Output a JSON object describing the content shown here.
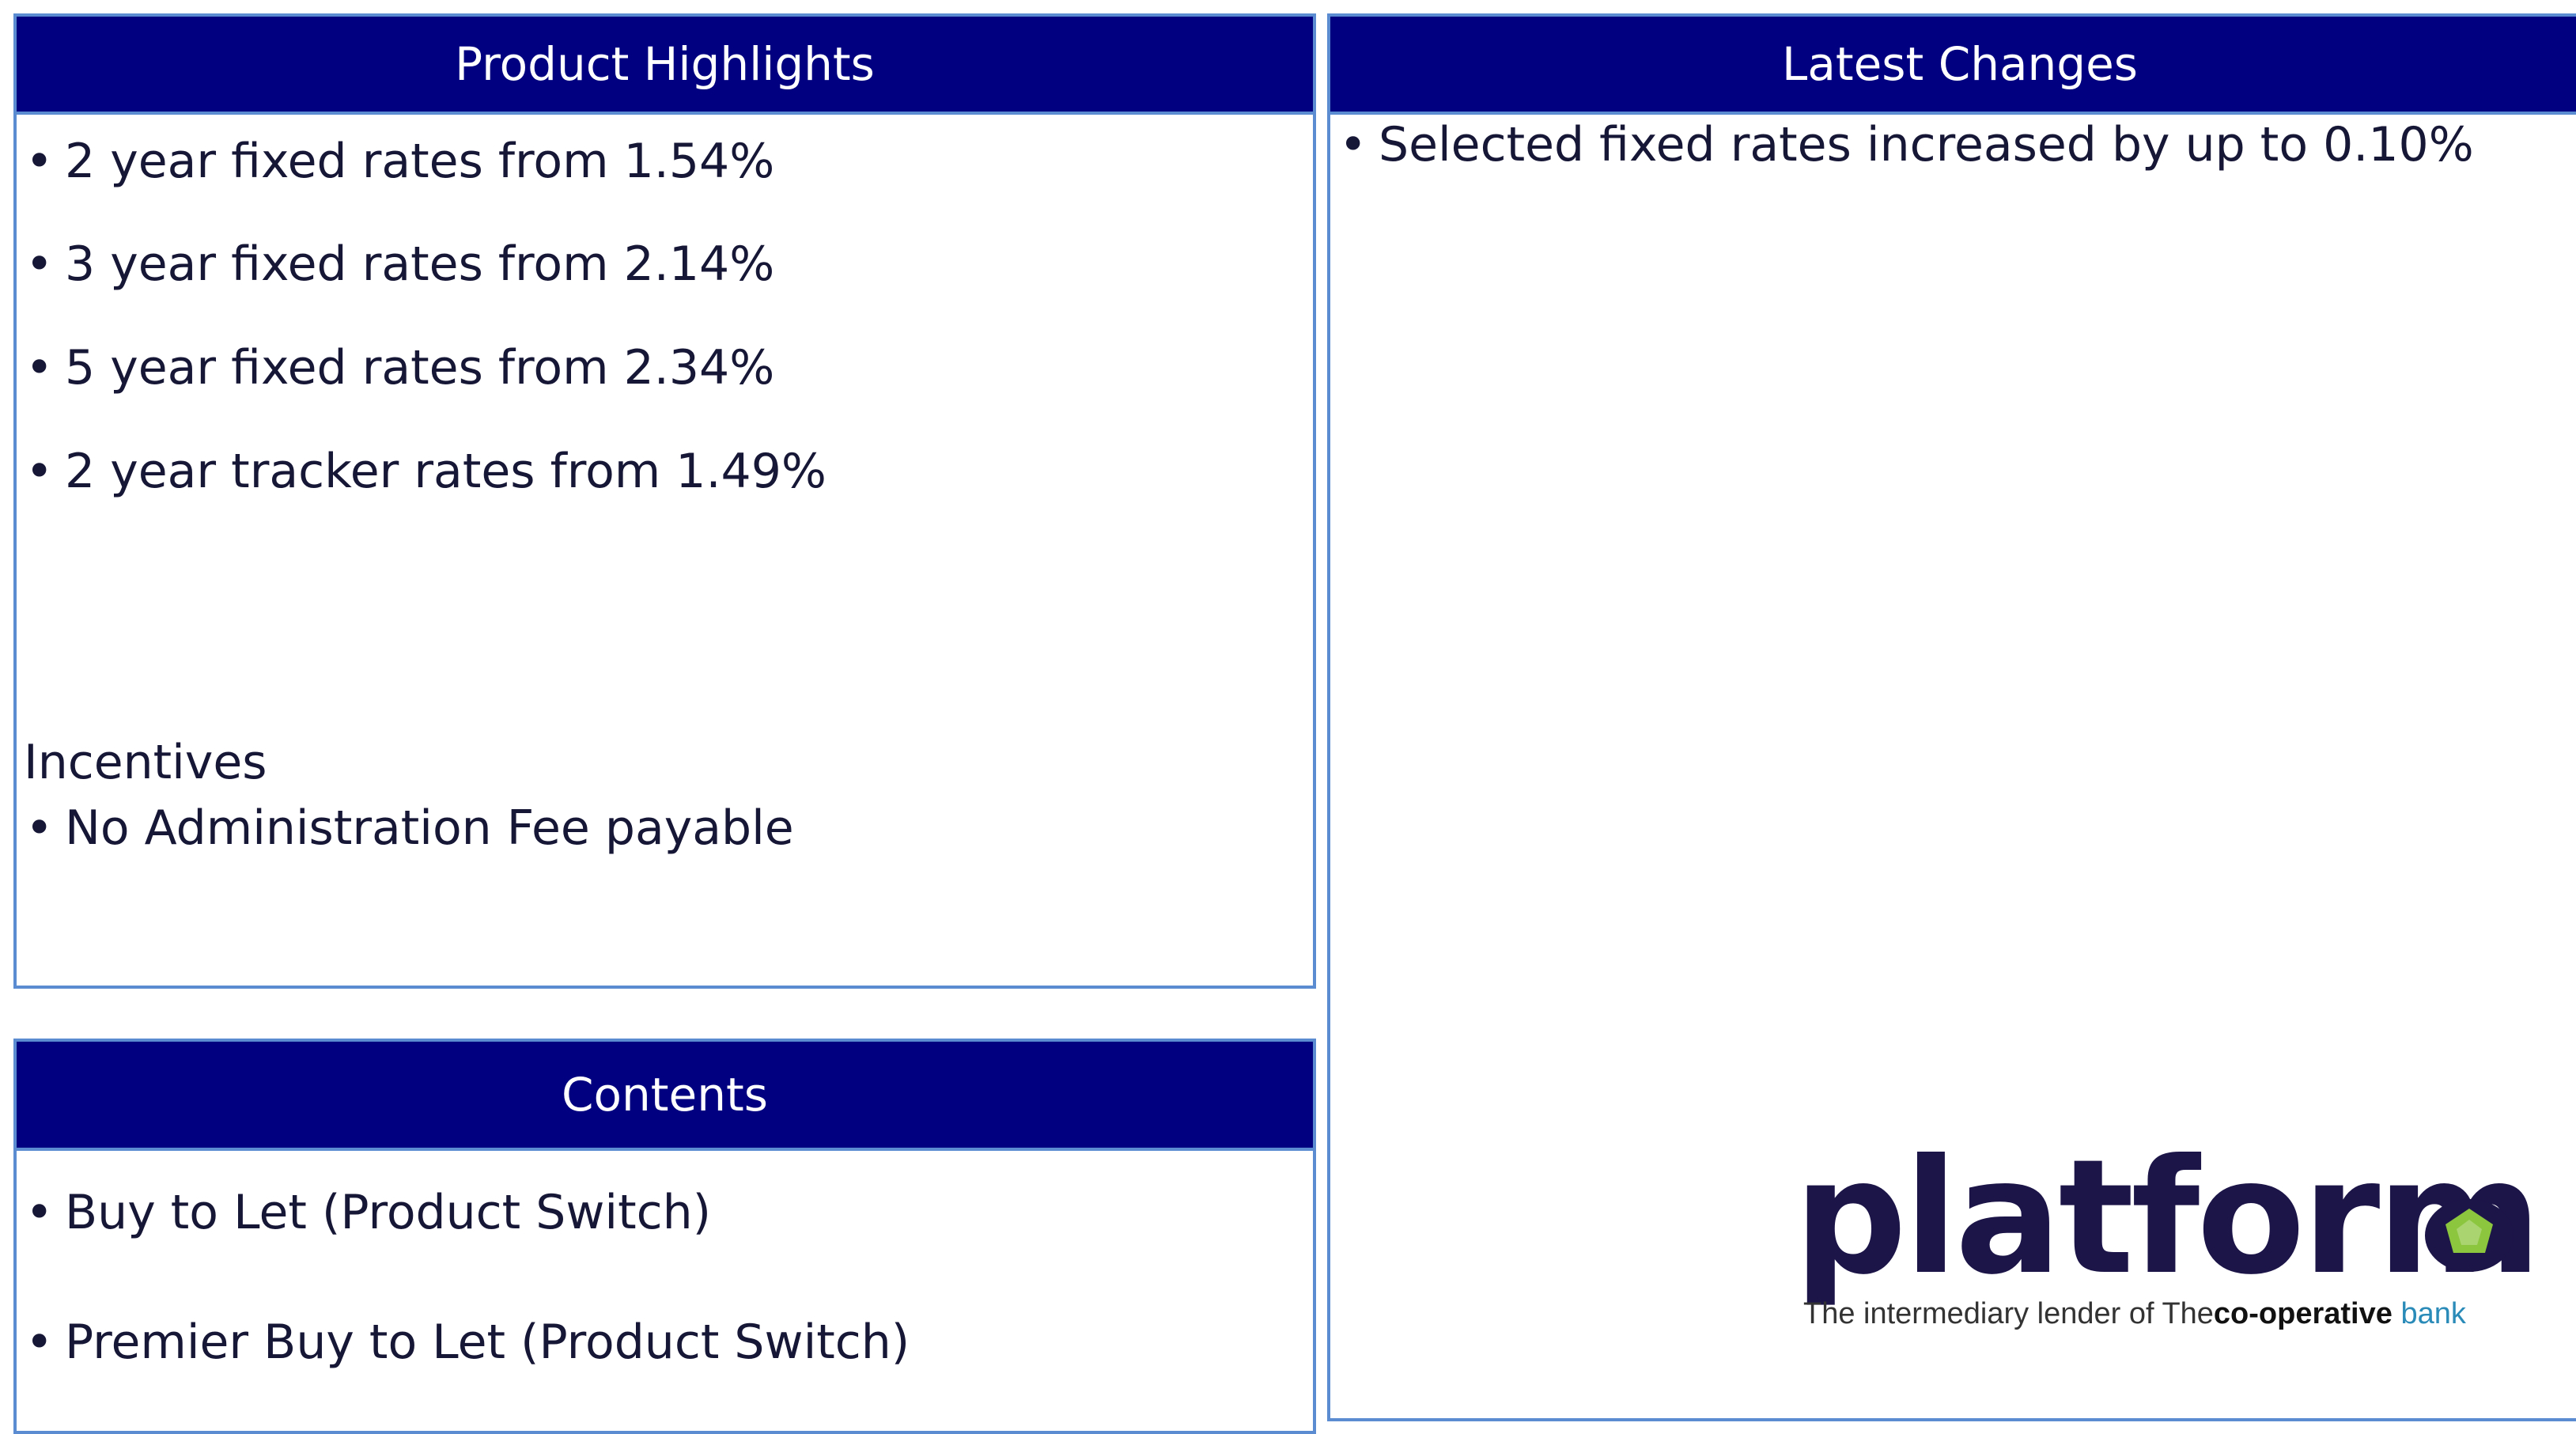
{
  "product_highlights": {
    "title": "Product Highlights",
    "items": [
      "2 year fixed rates from 1.54%",
      "3 year fixed rates from 2.14%",
      "5 year fixed rates from 2.34%",
      "2 year tracker rates from 1.49%"
    ],
    "incentives_heading": "Incentives",
    "incentives_items": [
      "No Administration Fee payable"
    ]
  },
  "latest_changes": {
    "title": "Latest Changes",
    "items": [
      "Selected fixed rates increased by up to 0.10%"
    ]
  },
  "contents": {
    "title": "Contents",
    "items": [
      "Buy to Let (Product Switch)",
      "Premier Buy to Let (Product Switch)"
    ]
  },
  "logo": {
    "name": "platform",
    "tagline": [
      "The intermediary lender of",
      "The",
      "co-operative",
      "bank"
    ]
  }
}
